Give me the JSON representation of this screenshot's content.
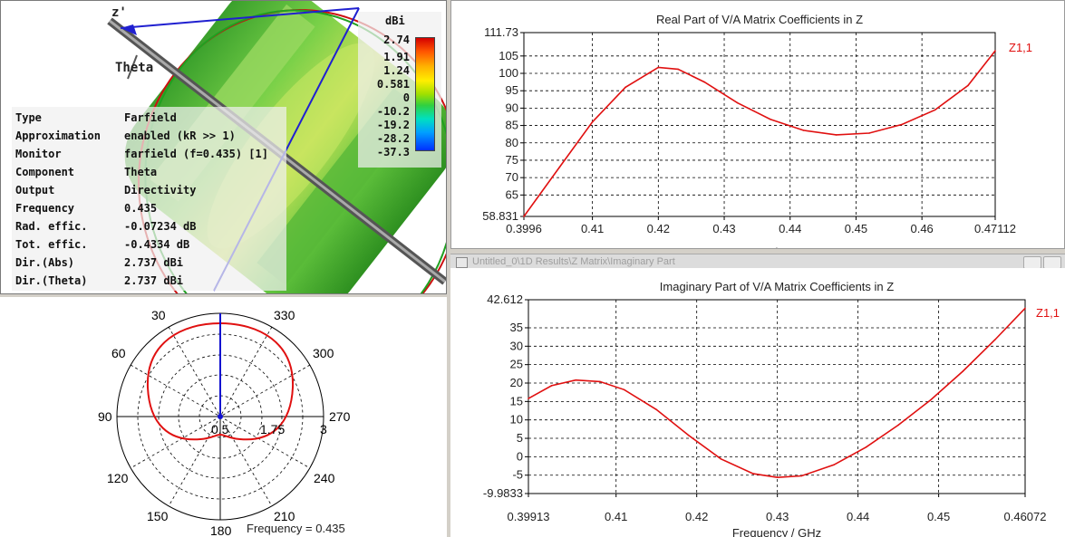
{
  "farfield_view": {
    "axis_label_z": "z'",
    "axis_label_theta": "Theta",
    "info": [
      {
        "key": "Type",
        "value": "Farfield"
      },
      {
        "key": "Approximation",
        "value": "enabled (kR >> 1)"
      },
      {
        "key": "Monitor",
        "value": "farfield (f=0.435) [1]"
      },
      {
        "key": "Component",
        "value": "Theta"
      },
      {
        "key": "Output",
        "value": "Directivity"
      },
      {
        "key": "Frequency",
        "value": "0.435"
      },
      {
        "key": "Rad. effic.",
        "value": "-0.07234 dB"
      },
      {
        "key": "Tot. effic.",
        "value": "-0.4334 dB"
      },
      {
        "key": "Dir.(Abs)",
        "value": " 2.737 dBi"
      },
      {
        "key": "Dir.(Theta)",
        "value": " 2.737 dBi"
      }
    ],
    "legend": {
      "unit": "dBi",
      "values": [
        "2.74",
        "1.91",
        "1.24",
        "0.581",
        "0",
        "-10.2",
        "-19.2",
        "-28.2",
        "-37.3"
      ]
    }
  },
  "polar_plot": {
    "angle_labels": {
      "a30": "30",
      "a330": "330",
      "a60": "60",
      "a300": "300",
      "a90": "90",
      "a270": "270",
      "a120": "120",
      "a240": "240",
      "a150": "150",
      "a210": "210",
      "a180": "180"
    },
    "radial_labels": [
      "0.5",
      "1.75",
      "3"
    ],
    "footer": "Frequency = 0.435",
    "colors": {
      "curve": "#e01010",
      "marker": "#1010d0"
    }
  },
  "chart_data": [
    {
      "type": "line",
      "title": "Real Part of V/A Matrix Coefficients in Z",
      "xlabel": "Frequency / GHz",
      "ylabel": "",
      "xlim": [
        0.3996,
        0.47112
      ],
      "ylim": [
        58.831,
        111.73
      ],
      "x_ticks": [
        "0.3996",
        "0.41",
        "0.42",
        "0.43",
        "0.44",
        "0.45",
        "0.46",
        "0.47112"
      ],
      "y_ticks": [
        "111.73",
        "105",
        "100",
        "95",
        "90",
        "85",
        "80",
        "75",
        "70",
        "65",
        "58.831"
      ],
      "grid": true,
      "series": [
        {
          "name": "Z1,1",
          "color": "#e01010",
          "x": [
            0.3996,
            0.405,
            0.41,
            0.415,
            0.42,
            0.423,
            0.427,
            0.432,
            0.437,
            0.442,
            0.447,
            0.452,
            0.457,
            0.462,
            0.467,
            0.47112
          ],
          "y": [
            58.831,
            73,
            86,
            96,
            101.7,
            101.2,
            97.5,
            91.5,
            86.8,
            83.6,
            82.3,
            82.8,
            85.3,
            89.5,
            96.5,
            106.5
          ]
        }
      ]
    },
    {
      "type": "line",
      "title": "Imaginary Part of V/A Matrix Coefficients in Z",
      "xlabel": "Frequency / GHz",
      "ylabel": "",
      "xlim": [
        0.39913,
        0.46072
      ],
      "ylim": [
        -9.9833,
        42.612
      ],
      "x_ticks": [
        "0.39913",
        "0.41",
        "0.42",
        "0.43",
        "0.44",
        "0.45",
        "0.46072"
      ],
      "y_ticks": [
        "42.612",
        "35",
        "30",
        "25",
        "20",
        "15",
        "10",
        "5",
        "0",
        "-5",
        "-9.9833"
      ],
      "grid": true,
      "series": [
        {
          "name": "Z1,1",
          "color": "#e01010",
          "x": [
            0.39913,
            0.402,
            0.405,
            0.408,
            0.411,
            0.415,
            0.419,
            0.423,
            0.427,
            0.43,
            0.433,
            0.437,
            0.441,
            0.445,
            0.449,
            0.453,
            0.457,
            0.46072
          ],
          "y": [
            15.8,
            19.3,
            20.8,
            20.4,
            18.2,
            12.8,
            5.8,
            -0.6,
            -4.6,
            -5.6,
            -5.2,
            -2.2,
            2.6,
            8.6,
            15.4,
            23.2,
            31.8,
            40.3
          ]
        }
      ]
    }
  ],
  "windows": {
    "imag_title_bar": "Untitled_0\\1D Results\\Z Matrix\\Imaginary Part"
  }
}
